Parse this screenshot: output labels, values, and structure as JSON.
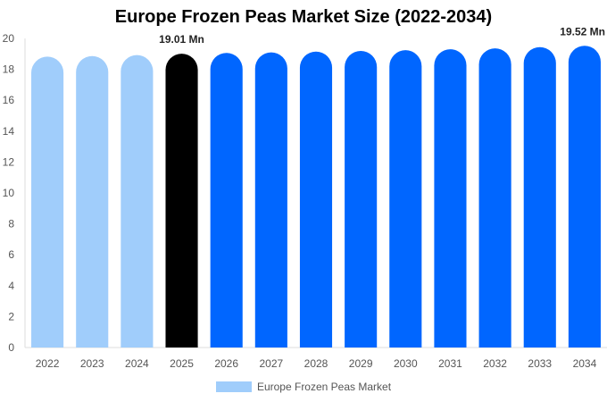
{
  "chart_data": {
    "type": "bar",
    "title": "Europe Frozen Peas Market Size (2022-2034)",
    "xlabel": "",
    "ylabel": "",
    "categories": [
      "2022",
      "2023",
      "2024",
      "2025",
      "2026",
      "2027",
      "2028",
      "2029",
      "2030",
      "2031",
      "2032",
      "2033",
      "2034"
    ],
    "series": [
      {
        "name": "Europe Frozen Peas Market",
        "values": [
          18.82,
          18.86,
          18.92,
          19.01,
          19.06,
          19.1,
          19.15,
          19.19,
          19.24,
          19.3,
          19.36,
          19.44,
          19.52
        ]
      }
    ],
    "ylim": [
      0,
      20
    ],
    "yticks": [
      0,
      2,
      4,
      6,
      8,
      10,
      12,
      14,
      16,
      18,
      20
    ],
    "grid": false,
    "legend": "bottom",
    "annotations": [
      {
        "category": "2025",
        "text": "19.01 Mn"
      },
      {
        "category": "2034",
        "text": "19.52 Mn"
      }
    ],
    "colors": {
      "historical": "#a0cdfb",
      "current": "#000000",
      "forecast": "#0066ff",
      "legend": "#a0cdfb"
    },
    "bar_color_by_category": [
      "historical",
      "historical",
      "historical",
      "current",
      "forecast",
      "forecast",
      "forecast",
      "forecast",
      "forecast",
      "forecast",
      "forecast",
      "forecast",
      "forecast"
    ]
  }
}
